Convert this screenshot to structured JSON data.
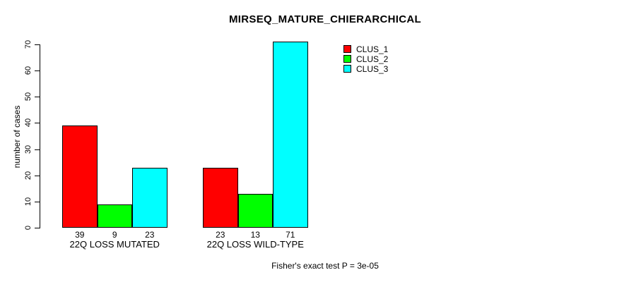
{
  "chart_data": {
    "type": "bar",
    "title": "MIRSEQ_MATURE_CHIERARCHICAL",
    "ylabel": "number of cases",
    "xlabel": "",
    "categories": [
      "22Q LOSS MUTATED",
      "22Q LOSS WILD-TYPE"
    ],
    "series": [
      {
        "name": "CLUS_1",
        "color": "#FF0000",
        "values": [
          39,
          23
        ]
      },
      {
        "name": "CLUS_2",
        "color": "#00FF00",
        "values": [
          9,
          13
        ]
      },
      {
        "name": "CLUS_3",
        "color": "#00FFFF",
        "values": [
          23,
          71
        ]
      }
    ],
    "bar_value_labels": [
      [
        39,
        9,
        23
      ],
      [
        23,
        13,
        71
      ]
    ],
    "yticks": [
      0,
      10,
      20,
      30,
      40,
      50,
      60,
      70
    ],
    "ylim": [
      0,
      70
    ],
    "grid": false,
    "legend_position": "top-right",
    "annotation": "Fisher's exact test P = 3e-05"
  },
  "colors": {
    "background": "#FFFFFF",
    "axis": "#000000",
    "clus_1": "#FF0000",
    "clus_2": "#00FF00",
    "clus_3": "#00FFFF"
  }
}
